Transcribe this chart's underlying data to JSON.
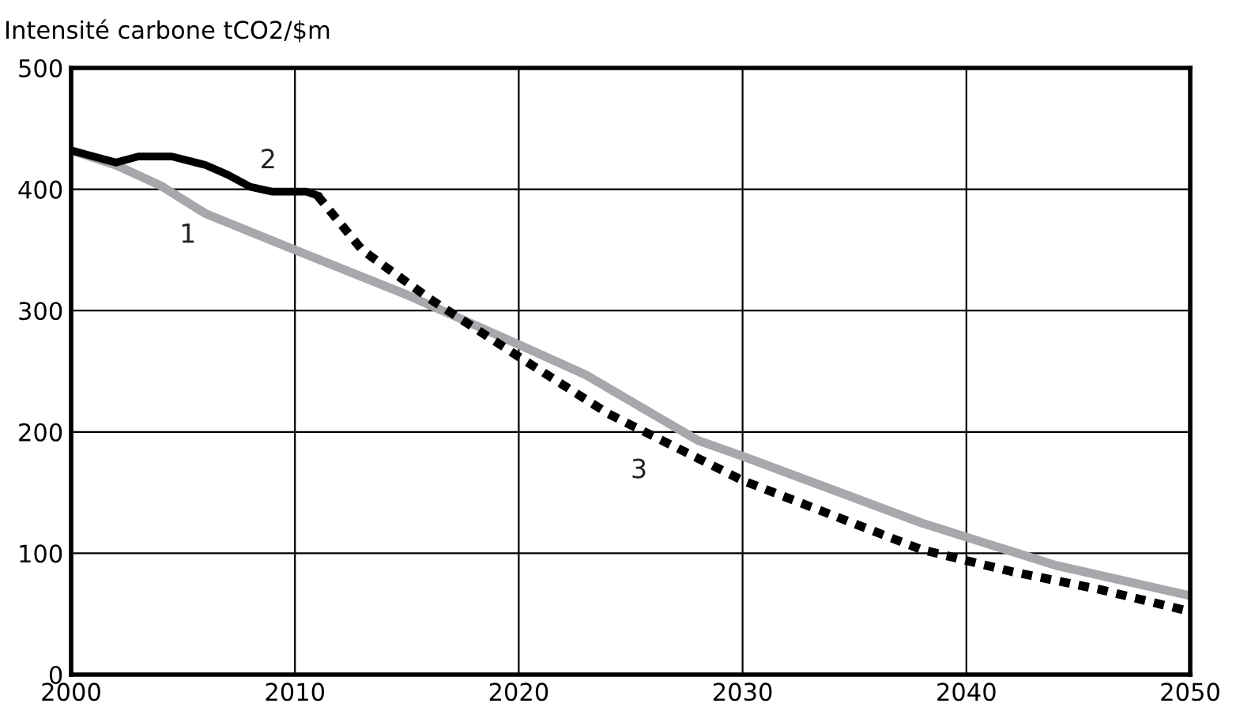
{
  "chart_data": {
    "type": "line",
    "ylabel": "Intensité carbone tCO2/$m",
    "xlim": [
      2000,
      2050
    ],
    "xticks": [
      2000,
      2010,
      2020,
      2030,
      2040,
      2050
    ],
    "ylim": [
      0,
      500
    ],
    "yticks": [
      0,
      100,
      200,
      300,
      400,
      500
    ],
    "grid": true,
    "series": [
      {
        "name": "1",
        "color": "#a6a8ab",
        "line_style": "solid",
        "x": [
          2000,
          2002,
          2004,
          2006,
          2010,
          2015,
          2020,
          2023,
          2028,
          2030,
          2038,
          2044,
          2050
        ],
        "values": [
          432,
          420,
          403,
          380,
          350,
          313,
          272,
          247,
          193,
          180,
          125,
          90,
          65
        ]
      },
      {
        "name": "2",
        "color": "#000000",
        "line_style": "solid",
        "x": [
          2000,
          2002,
          2003,
          2004.5,
          2006,
          2007,
          2008,
          2009,
          2010.5,
          2011
        ],
        "values": [
          432,
          422,
          427,
          427,
          420,
          412,
          402,
          398,
          398,
          395
        ]
      },
      {
        "name": "3",
        "color": "#000000",
        "line_style": "dotted",
        "x": [
          2011,
          2013,
          2016,
          2020,
          2024,
          2030,
          2038,
          2042,
          2046,
          2050
        ],
        "values": [
          395,
          350,
          310,
          262,
          215,
          160,
          103,
          85,
          70,
          52
        ]
      }
    ]
  }
}
